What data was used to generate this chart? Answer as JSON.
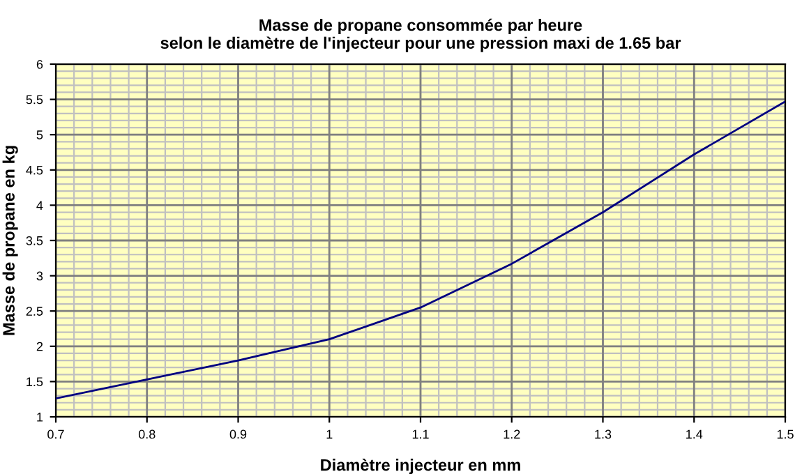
{
  "chart_data": {
    "type": "line",
    "title": "Masse de propane consommée par heure\nselon le diamètre de l'injecteur pour une pression maxi de 1.65 bar",
    "xlabel": "Diamètre injecteur en mm",
    "ylabel": "Masse de propane en kg",
    "x": [
      0.7,
      0.8,
      0.9,
      1,
      1.1,
      1.2,
      1.3,
      1.4,
      1.5
    ],
    "series": [
      {
        "color": "#000080",
        "values": [
          1.26,
          1.53,
          1.8,
          2.1,
          2.55,
          3.17,
          3.9,
          4.72,
          5.47
        ]
      }
    ],
    "xlim": [
      0.7,
      1.5
    ],
    "xticks": [
      0.7,
      0.8,
      0.9,
      1,
      1.1,
      1.2,
      1.3,
      1.4,
      1.5
    ],
    "ylim": [
      1,
      6
    ],
    "yticks": [
      1,
      1.5,
      2,
      2.5,
      3,
      3.5,
      4,
      4.5,
      5,
      5.5,
      6
    ],
    "grid": true,
    "legend": false,
    "marker": "none",
    "line_style": "solid"
  }
}
